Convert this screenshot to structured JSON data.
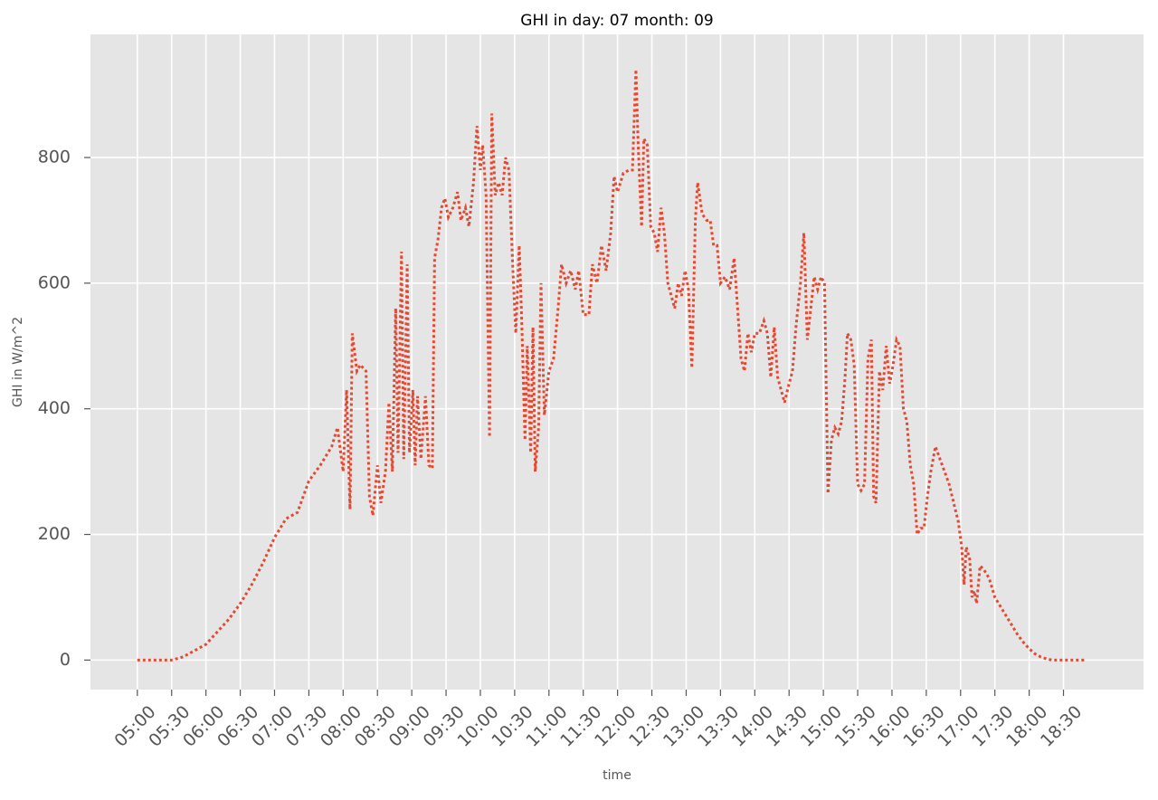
{
  "chart_data": {
    "type": "line",
    "title": "GHI in day: 07 month: 09",
    "x_label": "time",
    "y_label": "GHI in W/m^2",
    "x": [
      "05:00",
      "05:10",
      "05:20",
      "05:30",
      "05:40",
      "05:50",
      "06:00",
      "06:10",
      "06:20",
      "06:30",
      "06:40",
      "06:50",
      "07:00",
      "07:10",
      "07:20",
      "07:30",
      "07:40",
      "07:50",
      "07:55",
      "08:00",
      "08:03",
      "08:06",
      "08:08",
      "08:12",
      "08:15",
      "08:20",
      "08:23",
      "08:26",
      "08:30",
      "08:33",
      "08:37",
      "08:40",
      "08:43",
      "08:46",
      "08:48",
      "08:51",
      "08:53",
      "08:56",
      "08:58",
      "09:01",
      "09:03",
      "09:05",
      "09:08",
      "09:12",
      "09:15",
      "09:18",
      "09:20",
      "09:23",
      "09:26",
      "09:29",
      "09:32",
      "09:36",
      "09:40",
      "09:43",
      "09:47",
      "09:50",
      "09:54",
      "09:57",
      "10:00",
      "10:02",
      "10:05",
      "10:08",
      "10:10",
      "10:13",
      "10:16",
      "10:19",
      "10:22",
      "10:25",
      "10:28",
      "10:31",
      "10:34",
      "10:36",
      "10:39",
      "10:41",
      "10:44",
      "10:46",
      "10:48",
      "10:51",
      "10:53",
      "10:56",
      "11:00",
      "11:04",
      "11:08",
      "11:11",
      "11:15",
      "11:19",
      "11:23",
      "11:26",
      "11:30",
      "11:35",
      "11:38",
      "11:42",
      "11:46",
      "11:50",
      "11:54",
      "11:57",
      "12:00",
      "12:05",
      "12:10",
      "12:13",
      "12:16",
      "12:18",
      "12:21",
      "12:23",
      "12:26",
      "12:29",
      "12:32",
      "12:35",
      "12:38",
      "12:41",
      "12:44",
      "12:47",
      "12:50",
      "12:53",
      "12:56",
      "12:59",
      "13:02",
      "13:05",
      "13:08",
      "13:10",
      "13:14",
      "13:18",
      "13:21",
      "13:24",
      "13:27",
      "13:30",
      "13:34",
      "13:38",
      "13:42",
      "13:45",
      "13:48",
      "13:51",
      "13:54",
      "13:57",
      "14:00",
      "14:04",
      "14:08",
      "14:11",
      "14:14",
      "14:17",
      "14:20",
      "14:23",
      "14:26",
      "14:30",
      "14:33",
      "14:36",
      "14:40",
      "14:43",
      "14:46",
      "14:49",
      "14:52",
      "14:55",
      "14:58",
      "15:01",
      "15:04",
      "15:07",
      "15:10",
      "15:13",
      "15:16",
      "15:19",
      "15:21",
      "15:24",
      "15:27",
      "15:30",
      "15:33",
      "15:36",
      "15:39",
      "15:42",
      "15:44",
      "15:46",
      "15:49",
      "15:52",
      "15:55",
      "15:58",
      "16:01",
      "16:04",
      "16:07",
      "16:10",
      "16:13",
      "16:16",
      "16:19",
      "16:22",
      "16:25",
      "16:28",
      "16:31",
      "16:34",
      "16:38",
      "16:42",
      "16:46",
      "16:50",
      "16:54",
      "16:58",
      "17:01",
      "17:03",
      "17:05",
      "17:08",
      "17:10",
      "17:12",
      "17:14",
      "17:17",
      "17:20",
      "17:25",
      "17:30",
      "17:35",
      "17:40",
      "17:45",
      "17:50",
      "17:55",
      "18:00",
      "18:05",
      "18:10",
      "18:15",
      "18:20",
      "18:30",
      "18:40",
      "18:50"
    ],
    "series": [
      {
        "color": "#e24a33",
        "style": "dotted",
        "values": [
          0,
          0,
          0,
          0,
          5,
          15,
          25,
          45,
          65,
          90,
          120,
          155,
          195,
          225,
          235,
          285,
          310,
          340,
          370,
          300,
          430,
          240,
          520,
          460,
          470,
          460,
          260,
          230,
          310,
          250,
          300,
          410,
          300,
          560,
          330,
          650,
          320,
          630,
          330,
          430,
          310,
          420,
          320,
          420,
          310,
          305,
          640,
          670,
          720,
          735,
          705,
          720,
          745,
          700,
          720,
          690,
          760,
          850,
          780,
          820,
          740,
          355,
          870,
          740,
          760,
          740,
          800,
          780,
          640,
          520,
          660,
          550,
          350,
          500,
          330,
          530,
          300,
          370,
          600,
          390,
          460,
          480,
          560,
          630,
          600,
          620,
          590,
          620,
          550,
          550,
          630,
          600,
          660,
          620,
          680,
          770,
          745,
          775,
          780,
          780,
          940,
          820,
          690,
          830,
          820,
          690,
          680,
          650,
          720,
          680,
          600,
          580,
          560,
          600,
          580,
          620,
          590,
          465,
          700,
          760,
          710,
          700,
          700,
          660,
          660,
          600,
          610,
          590,
          640,
          560,
          480,
          460,
          520,
          490,
          520,
          520,
          540,
          520,
          450,
          530,
          450,
          430,
          410,
          440,
          460,
          530,
          600,
          680,
          510,
          560,
          610,
          590,
          610,
          600,
          265,
          350,
          370,
          360,
          380,
          450,
          520,
          510,
          470,
          280,
          270,
          280,
          480,
          510,
          260,
          250,
          460,
          430,
          500,
          440,
          470,
          510,
          500,
          400,
          380,
          310,
          280,
          200,
          210,
          210,
          260,
          300,
          340,
          320,
          300,
          280,
          250,
          220,
          180,
          120,
          180,
          160,
          100,
          110,
          90,
          150,
          145,
          130,
          100,
          85,
          70,
          55,
          40,
          28,
          18,
          10,
          5,
          2,
          0,
          0,
          0,
          0
        ]
      }
    ],
    "xlim": [
      "04:19",
      "19:40"
    ],
    "xticks": [
      "05:00",
      "05:30",
      "06:00",
      "06:30",
      "07:00",
      "07:30",
      "08:00",
      "08:30",
      "09:00",
      "09:30",
      "10:00",
      "10:30",
      "11:00",
      "11:30",
      "12:00",
      "12:30",
      "13:00",
      "13:30",
      "14:00",
      "14:30",
      "15:00",
      "15:30",
      "16:00",
      "16:30",
      "17:00",
      "17:30",
      "18:00",
      "18:30"
    ],
    "ylim": [
      -47,
      996
    ],
    "yticks": [
      0,
      200,
      400,
      600,
      800
    ],
    "grid": true
  }
}
